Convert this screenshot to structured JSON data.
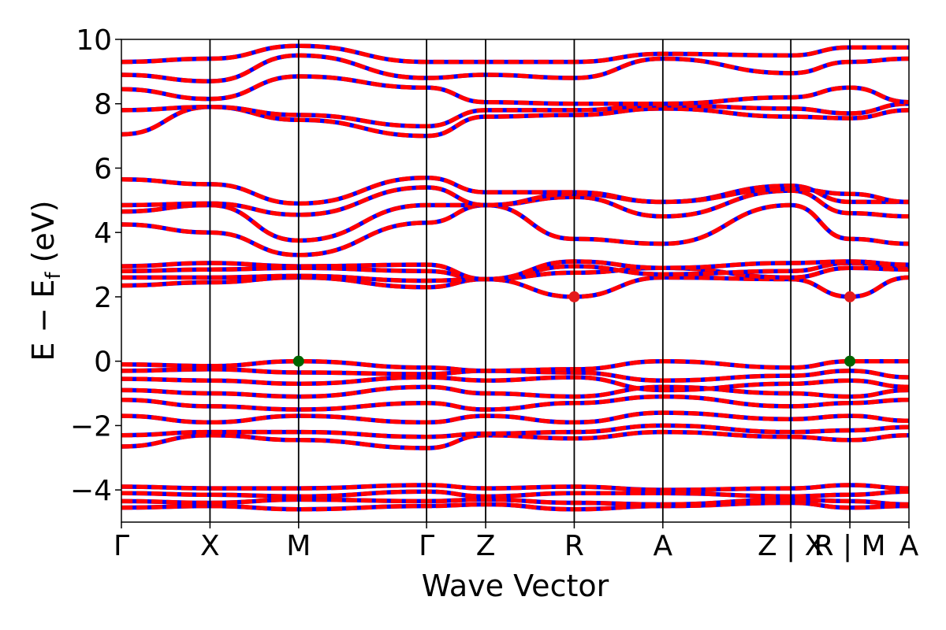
{
  "chart_data": {
    "type": "line",
    "title": "",
    "xlabel": "Wave Vector",
    "ylabel_parts": {
      "main": "E − E",
      "sub": "f",
      "unit": " (eV)"
    },
    "ylim": [
      -5,
      10
    ],
    "yticks": [
      -4,
      -2,
      0,
      2,
      4,
      6,
      8,
      10
    ],
    "ytick_labels": [
      "−4",
      "−2",
      "0",
      "2",
      "4",
      "6",
      "8",
      "10"
    ],
    "grid": false,
    "legend": "none",
    "x_range": [
      0,
      4.0
    ],
    "high_symmetry_points": [
      {
        "x": 0.0,
        "label": "Γ"
      },
      {
        "x": 0.45,
        "label": "X"
      },
      {
        "x": 0.9,
        "label": "M"
      },
      {
        "x": 1.55,
        "label": "Γ"
      },
      {
        "x": 1.85,
        "label": "Z"
      },
      {
        "x": 2.3,
        "label": "R"
      },
      {
        "x": 2.75,
        "label": "A"
      },
      {
        "x": 3.4,
        "label": "Z | X"
      },
      {
        "x": 3.7,
        "label": "R | M"
      },
      {
        "x": 4.0,
        "label": "A"
      }
    ],
    "band_color_primary": "#ff0000",
    "band_color_secondary": "#0000ff",
    "conduction_band_minimum": [
      {
        "x": 2.3,
        "y": 2.0
      },
      {
        "x": 3.7,
        "y": 2.0
      }
    ],
    "valence_band_maximum": [
      {
        "x": 0.9,
        "y": 0.0
      },
      {
        "x": 3.7,
        "y": 0.0
      }
    ],
    "cbm_color": "#e41a1c",
    "vbm_color": "#006400",
    "bands": [
      {
        "name": "",
        "y": [
          -4.55,
          -4.5,
          -4.6,
          -4.5,
          -4.45,
          -4.6,
          -4.5,
          -4.4,
          -4.55,
          -4.5
        ]
      },
      {
        "name": "",
        "y": [
          -4.35,
          -4.4,
          -4.3,
          -4.35,
          -4.3,
          -4.4,
          -4.45,
          -4.3,
          -4.35,
          -4.45
        ]
      },
      {
        "name": "",
        "y": [
          -4.1,
          -4.15,
          -4.2,
          -4.05,
          -4.2,
          -4.1,
          -4.1,
          -4.2,
          -4.15,
          -4.05
        ]
      },
      {
        "name": "",
        "y": [
          -3.9,
          -3.95,
          -3.95,
          -3.85,
          -3.95,
          -3.9,
          -4.0,
          -3.95,
          -3.85,
          -3.95
        ]
      },
      {
        "name": "",
        "y": [
          -2.65,
          -2.3,
          -2.45,
          -2.7,
          -2.3,
          -2.4,
          -2.2,
          -2.35,
          -2.45,
          -2.3
        ]
      },
      {
        "name": "",
        "y": [
          -2.3,
          -2.2,
          -2.2,
          -2.35,
          -2.25,
          -2.2,
          -2.0,
          -2.2,
          -2.15,
          -2.05
        ]
      },
      {
        "name": "",
        "y": [
          -1.7,
          -1.9,
          -1.7,
          -1.9,
          -1.7,
          -1.9,
          -1.6,
          -1.8,
          -1.7,
          -1.85
        ]
      },
      {
        "name": "",
        "y": [
          -1.2,
          -1.4,
          -1.5,
          -1.3,
          -1.5,
          -1.3,
          -1.1,
          -1.4,
          -1.3,
          -1.2
        ]
      },
      {
        "name": "",
        "y": [
          -0.9,
          -1.0,
          -1.1,
          -0.8,
          -1.0,
          -1.1,
          -0.8,
          -1.0,
          -1.1,
          -0.9
        ]
      },
      {
        "name": "",
        "y": [
          -0.55,
          -0.6,
          -0.7,
          -0.5,
          -0.6,
          -0.5,
          -0.9,
          -0.7,
          -0.6,
          -0.8
        ]
      },
      {
        "name": "",
        "y": [
          -0.3,
          -0.25,
          -0.35,
          -0.4,
          -0.3,
          -0.35,
          -0.6,
          -0.45,
          -0.3,
          -0.5
        ]
      },
      {
        "name": "",
        "y": [
          -0.1,
          -0.15,
          0.0,
          -0.2,
          -0.3,
          -0.25,
          0.0,
          -0.2,
          0.0,
          0.0
        ]
      },
      {
        "name": "",
        "y": [
          2.35,
          2.45,
          2.6,
          2.3,
          2.55,
          2.0,
          2.6,
          2.55,
          2.0,
          2.6
        ]
      },
      {
        "name": "",
        "y": [
          2.6,
          2.6,
          2.65,
          2.5,
          2.55,
          2.75,
          2.9,
          2.6,
          2.9,
          2.85
        ]
      },
      {
        "name": "",
        "y": [
          2.8,
          2.85,
          2.9,
          2.8,
          2.55,
          2.95,
          2.7,
          2.8,
          3.05,
          2.95
        ]
      },
      {
        "name": "",
        "y": [
          2.95,
          3.05,
          2.95,
          3.0,
          2.55,
          3.1,
          2.9,
          3.05,
          3.1,
          3.0
        ]
      },
      {
        "name": "",
        "y": [
          4.25,
          4.0,
          3.3,
          4.3,
          4.85,
          3.8,
          3.65,
          4.85,
          3.8,
          3.65
        ]
      },
      {
        "name": "",
        "y": [
          4.65,
          4.85,
          3.75,
          4.85,
          4.85,
          5.1,
          4.5,
          5.3,
          4.6,
          4.5
        ]
      },
      {
        "name": "",
        "y": [
          4.85,
          4.9,
          4.55,
          5.4,
          4.85,
          5.2,
          4.95,
          5.45,
          4.95,
          4.95
        ]
      },
      {
        "name": "",
        "y": [
          5.65,
          5.5,
          4.9,
          5.7,
          5.25,
          5.25,
          4.95,
          5.35,
          5.2,
          4.95
        ]
      },
      {
        "name": "",
        "y": [
          7.05,
          7.9,
          7.5,
          7.0,
          7.6,
          7.65,
          7.85,
          7.6,
          7.55,
          7.8
        ]
      },
      {
        "name": "",
        "y": [
          7.8,
          7.9,
          7.65,
          7.3,
          7.8,
          7.8,
          7.95,
          7.85,
          7.7,
          8.0
        ]
      },
      {
        "name": "",
        "y": [
          8.45,
          8.15,
          8.85,
          8.5,
          8.05,
          8.0,
          8.0,
          8.2,
          8.5,
          8.05
        ]
      },
      {
        "name": "",
        "y": [
          8.9,
          8.7,
          9.5,
          8.8,
          8.9,
          8.8,
          9.4,
          8.95,
          9.3,
          9.4
        ]
      },
      {
        "name": "",
        "y": [
          9.3,
          9.4,
          9.8,
          9.3,
          9.3,
          9.3,
          9.55,
          9.5,
          9.75,
          9.75
        ]
      }
    ]
  }
}
